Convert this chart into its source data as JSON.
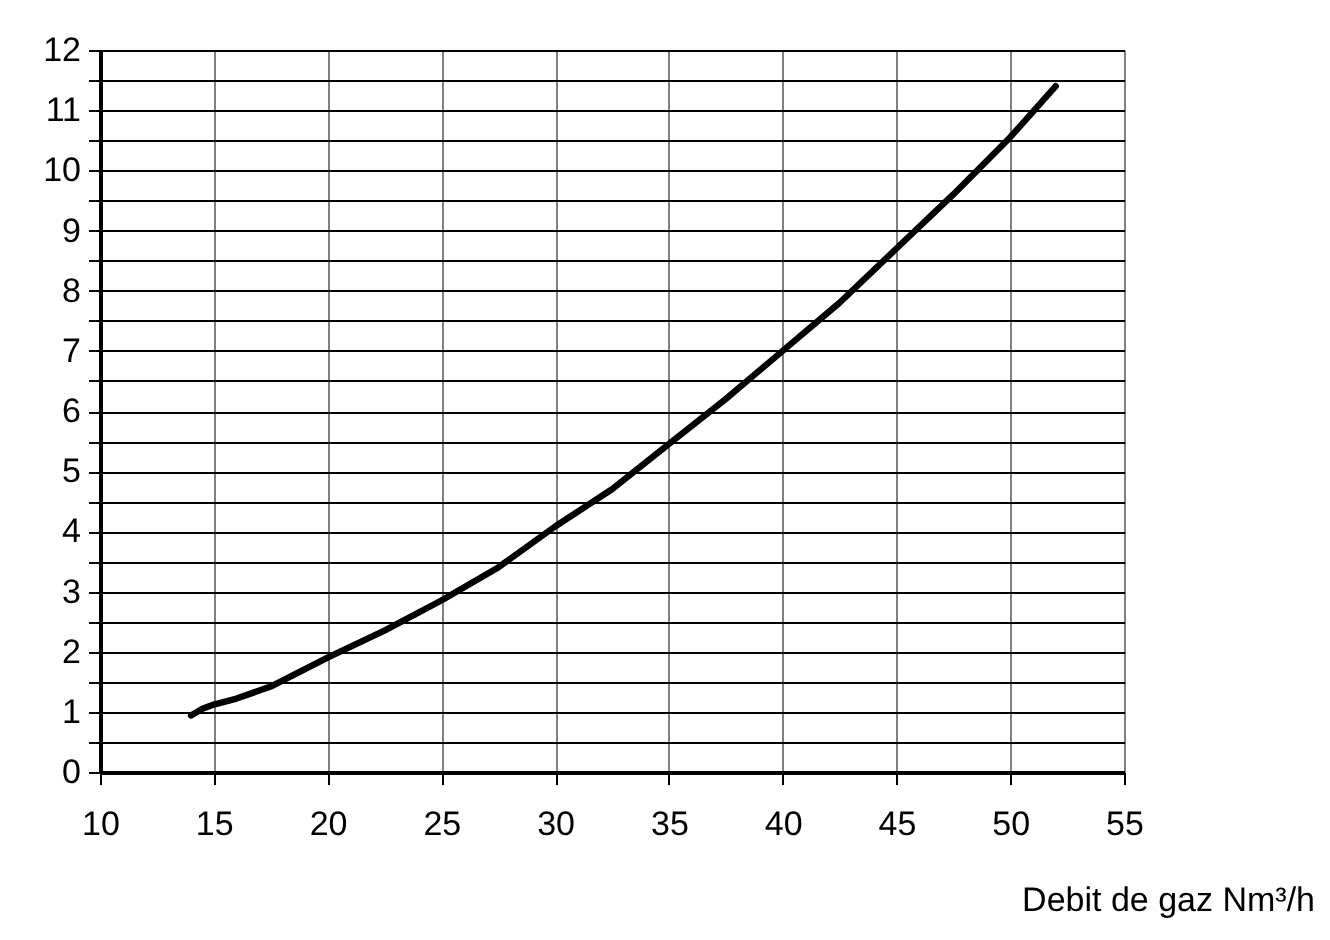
{
  "chart_data": {
    "type": "line",
    "xlabel": "Debit de gaz Nm³/h",
    "x": [
      14,
      14.5,
      15,
      16,
      17.5,
      20,
      22.5,
      25,
      27.5,
      30,
      32.5,
      35,
      37.5,
      40,
      42.5,
      45,
      47.5,
      50,
      52
    ],
    "series": [
      {
        "color": "#000000",
        "values": [
          0.94,
          1.05,
          1.12,
          1.22,
          1.42,
          1.9,
          2.35,
          2.85,
          3.4,
          4.08,
          4.7,
          5.45,
          6.2,
          7.0,
          7.8,
          8.7,
          9.6,
          10.55,
          11.4
        ]
      }
    ],
    "xlim": [
      10,
      55
    ],
    "xticks": [
      10,
      15,
      20,
      25,
      30,
      35,
      40,
      45,
      50,
      55
    ],
    "ylim": [
      0,
      12
    ],
    "yticks": [
      0,
      {
        "value": 0.5,
        "label": null
      },
      1,
      {
        "value": 1.5,
        "label": null
      },
      2,
      {
        "value": 2.5,
        "label": null
      },
      3,
      {
        "value": 3.5,
        "label": null
      },
      4,
      {
        "value": 4.5,
        "label": null
      },
      5,
      {
        "value": 5.5,
        "label": null
      },
      6,
      {
        "value": 6.5,
        "label": null
      },
      7,
      {
        "value": 7.5,
        "label": null
      },
      8,
      {
        "value": 8.5,
        "label": null
      },
      9,
      {
        "value": 9.5,
        "label": null
      },
      10,
      {
        "value": 10.5,
        "label": null
      },
      11,
      {
        "value": 11.5,
        "label": null
      },
      12
    ],
    "grid": true,
    "line_style": "solid",
    "marker": "none"
  }
}
